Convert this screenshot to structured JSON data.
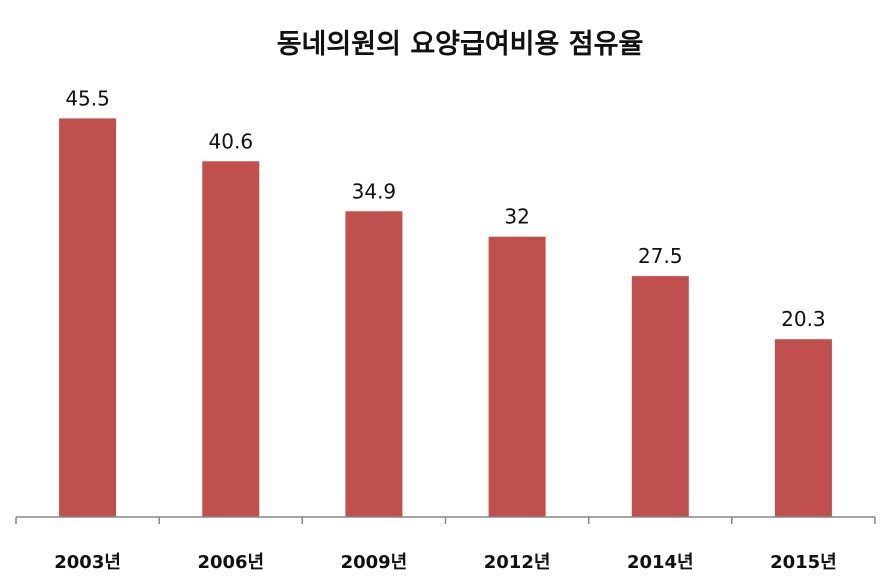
{
  "colors": {
    "bar": "#c0504d",
    "axis": "#888888",
    "text": "#111111"
  },
  "chart_data": {
    "type": "bar",
    "title": "동네의원의 요양급여비용 점유율",
    "xlabel": "",
    "ylabel": "",
    "categories": [
      "2003년",
      "2006년",
      "2009년",
      "2012년",
      "2014년",
      "2015년"
    ],
    "values": [
      45.5,
      40.6,
      34.9,
      32,
      27.5,
      20.3
    ],
    "data_labels": [
      "45.5",
      "40.6",
      "34.9",
      "32",
      "27.5",
      "20.3"
    ],
    "ylim": [
      0,
      50
    ],
    "grid": false,
    "legend": "none"
  }
}
